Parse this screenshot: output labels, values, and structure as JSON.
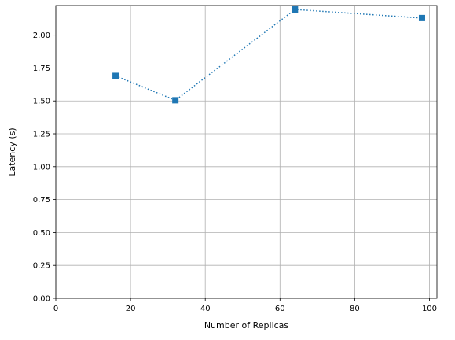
{
  "chart_data": {
    "type": "line",
    "title": "",
    "xlabel": "Number of Replicas",
    "ylabel": "Latency (s)",
    "xlim": [
      0,
      102
    ],
    "ylim": [
      0,
      2.225
    ],
    "xticks": [
      0,
      20,
      40,
      60,
      80,
      100
    ],
    "xtick_labels": [
      "0",
      "20",
      "40",
      "60",
      "80",
      "100"
    ],
    "yticks": [
      0,
      0.25,
      0.5,
      0.75,
      1.0,
      1.25,
      1.5,
      1.75,
      2.0
    ],
    "ytick_labels": [
      "0.00",
      "0.25",
      "0.50",
      "0.75",
      "1.00",
      "1.25",
      "1.50",
      "1.75",
      "2.00"
    ],
    "grid": true,
    "series": [
      {
        "x": [
          16,
          32,
          64,
          98
        ],
        "y": [
          1.69,
          1.505,
          2.195,
          2.13
        ],
        "color": "#1f77b4",
        "line_style": "dotted",
        "marker": "square"
      }
    ]
  }
}
